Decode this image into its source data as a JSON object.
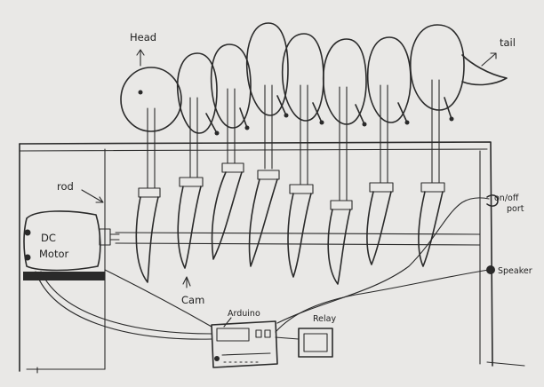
{
  "labels": {
    "head": "Head",
    "tail": "tail",
    "rod": "rod",
    "dc_motor_line1": "DC",
    "dc_motor_line2": "Motor",
    "cam": "Cam",
    "arduino": "Arduino",
    "relay": "Relay",
    "on_off_line1": "on/off",
    "on_off_line2": "port",
    "speaker": "Speaker"
  },
  "colors": {
    "paper": "#e9e8e6",
    "ink": "#2a2a2a"
  }
}
